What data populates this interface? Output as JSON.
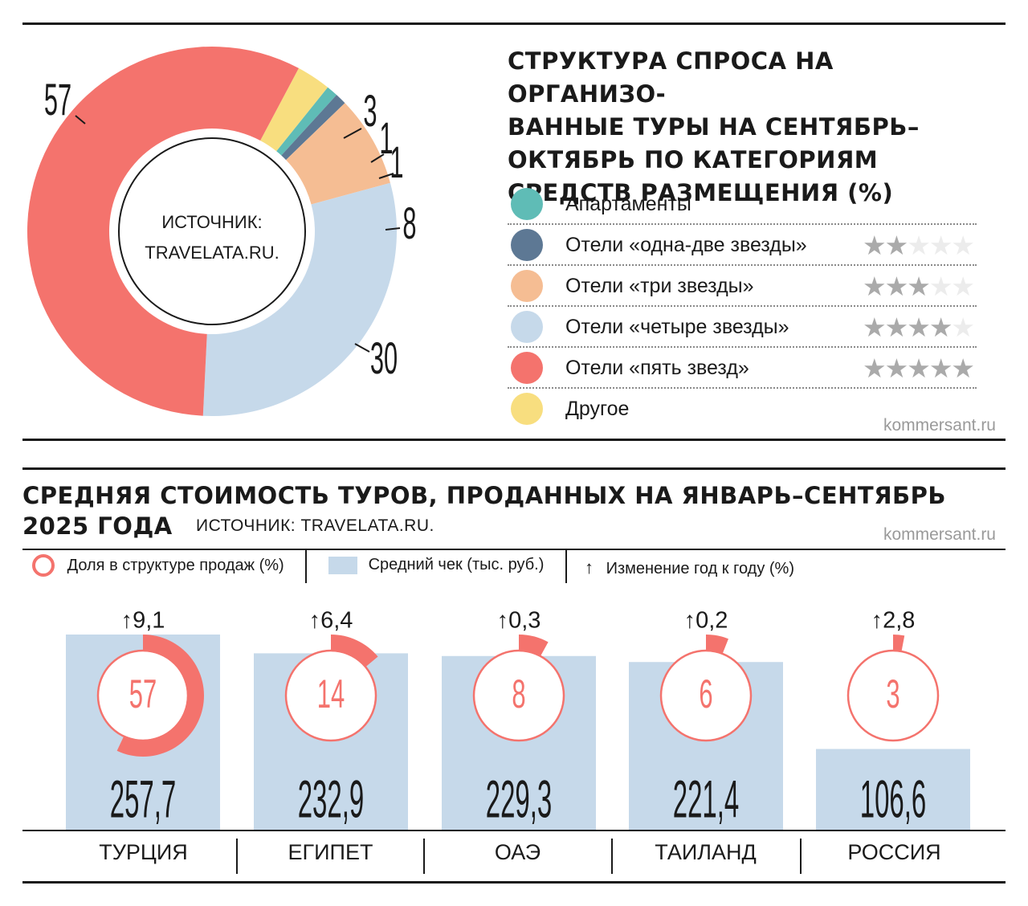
{
  "colors": {
    "apartments": "#5fbcb6",
    "hotels_1_2": "#5d7894",
    "hotels_3": "#f5bd93",
    "hotels_4": "#c6d9ea",
    "hotels_5": "#f4736d",
    "other": "#f8de7f",
    "bar": "#c6d9ea",
    "ring": "#f4736d",
    "star_on": "#aaaaaa",
    "star_off": "#ececec"
  },
  "header": {
    "title1": "СТРУКТУРА СПРОСА НА ОРГАНИЗО-ВАННЫЕ ТУРЫ НА СЕНТЯБРЬ–ОКТЯБРЬ ПО КАТЕГОРИЯМ СРЕДСТВ РАЗМЕЩЕНИЯ (%)",
    "title1_lines": [
      "СТРУКТУРА СПРОСА НА ОРГАНИЗО-",
      "ВАННЫЕ ТУРЫ НА СЕНТЯБРЬ–",
      "ОКТЯБРЬ ПО КАТЕГОРИЯМ",
      "СРЕДСТВ РАЗМЕЩЕНИЯ (%)"
    ],
    "source_line1": "ИСТОЧНИК:",
    "source_line2": "TRAVELATA.RU.",
    "credit": "kommersant.ru",
    "title2_line1": "СРЕДНЯЯ СТОИМОСТЬ ТУРОВ, ПРОДАННЫХ НА ЯНВАРЬ–СЕНТЯБРЬ",
    "title2_line2": "2025 ГОДА",
    "source2": "ИСТОЧНИК: TRAVELATA.RU.",
    "credit2": "kommersant.ru"
  },
  "legend": [
    {
      "label": "Апартаменты",
      "color_key": "apartments",
      "stars": 0
    },
    {
      "label": "Отели «одна-две звезды»",
      "color_key": "hotels_1_2",
      "stars": 2
    },
    {
      "label": "Отели «три звезды»",
      "color_key": "hotels_3",
      "stars": 3
    },
    {
      "label": "Отели «четыре звезды»",
      "color_key": "hotels_4",
      "stars": 4
    },
    {
      "label": "Отели «пять звезд»",
      "color_key": "hotels_5",
      "stars": 5
    },
    {
      "label": "Другое",
      "color_key": "other",
      "stars": 0
    }
  ],
  "legend2": {
    "share": "Доля в структуре продаж (%)",
    "check": "Средний чек (тыс. руб.)",
    "change": "Изменение год к году (%)",
    "arrow": "↑"
  },
  "chart_data": [
    {
      "type": "pie",
      "title": "СТРУКТУРА СПРОСА НА ОРГАНИЗОВАННЫЕ ТУРЫ НА СЕНТЯБРЬ–ОКТЯБРЬ ПО КАТЕГОРИЯМ СРЕДСТВ РАЗМЕЩЕНИЯ (%)",
      "donut": true,
      "slices": [
        {
          "name": "Другое",
          "value": 3,
          "label": "3",
          "color_key": "other"
        },
        {
          "name": "Апартаменты",
          "value": 1,
          "label": "1",
          "color_key": "apartments"
        },
        {
          "name": "Отели «одна-две звезды»",
          "value": 1,
          "label": "1",
          "color_key": "hotels_1_2"
        },
        {
          "name": "Отели «три звезды»",
          "value": 8,
          "label": "8",
          "color_key": "hotels_3"
        },
        {
          "name": "Отели «четыре звезды»",
          "value": 30,
          "label": "30",
          "color_key": "hotels_4"
        },
        {
          "name": "Отели «пять звезд»",
          "value": 57,
          "label": "57",
          "color_key": "hotels_5"
        }
      ]
    },
    {
      "type": "bar",
      "title": "СРЕДНЯЯ СТОИМОСТЬ ТУРОВ, ПРОДАННЫХ НА ЯНВАРЬ–СЕНТЯБРЬ 2025 ГОДА",
      "categories": [
        "ТУРЦИЯ",
        "ЕГИПЕТ",
        "ОАЭ",
        "ТАИЛАНД",
        "РОССИЯ"
      ],
      "series": [
        {
          "name": "Средний чек (тыс. руб.)",
          "values": [
            257.7,
            232.9,
            229.3,
            221.4,
            106.6
          ],
          "labels": [
            "257,7",
            "232,9",
            "229,3",
            "221,4",
            "106,6"
          ]
        },
        {
          "name": "Доля в структуре продаж (%)",
          "values": [
            57,
            14,
            8,
            6,
            3
          ],
          "labels": [
            "57",
            "14",
            "8",
            "6",
            "3"
          ]
        },
        {
          "name": "Изменение год к году (%)",
          "values": [
            9.1,
            6.4,
            0.3,
            0.2,
            2.8
          ],
          "labels": [
            "9,1",
            "6,4",
            "0,3",
            "0,2",
            "2,8"
          ]
        }
      ],
      "ylim": [
        0,
        257.7
      ]
    }
  ]
}
